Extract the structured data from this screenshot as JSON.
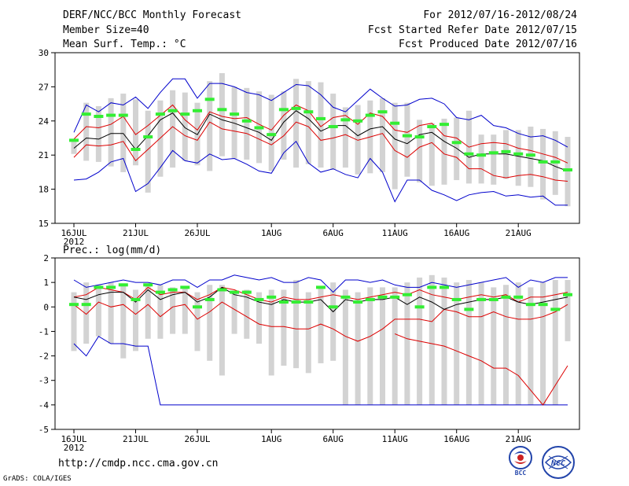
{
  "header": {
    "title": "DERF/NCC/BCC Monthly Forecast",
    "members": "Member Size=40",
    "variable": "Mean Surf. Temp.: °C",
    "period": "For 2012/07/16-2012/08/24",
    "started": "Fcst Started Refer Date 2012/07/15",
    "produced": "Fcst Produced Date 2012/07/16"
  },
  "footer": {
    "url": "http://cmdp.ncc.cma.gov.cn",
    "grads": "GrADS: COLA/IGES",
    "logo1_label": "BCC",
    "logo2_label": "NCC"
  },
  "colors": {
    "box": "#d3d3d3",
    "green": "#33ee33",
    "blue": "#0000cc",
    "red": "#dd0000",
    "mean": "#000000"
  },
  "chart_data": [
    {
      "type": "line",
      "title": "Mean Surf. Temp.: °C",
      "ylabel": "°C",
      "ylim": [
        15,
        30
      ],
      "yticks": [
        15,
        18,
        21,
        24,
        27,
        30
      ],
      "xlim": [
        0,
        40
      ],
      "xticks": [
        {
          "day": 0,
          "label": "16JUL",
          "sub": "2012"
        },
        {
          "day": 5,
          "label": "21JUL"
        },
        {
          "day": 10,
          "label": "26JUL"
        },
        {
          "day": 16,
          "label": "1AUG"
        },
        {
          "day": 21,
          "label": "6AUG"
        },
        {
          "day": 26,
          "label": "11AUG"
        },
        {
          "day": 31,
          "label": "16AUG"
        },
        {
          "day": 36,
          "label": "21AUG"
        }
      ],
      "series": [
        {
          "name": "box_top",
          "values": [
            22.4,
            25.6,
            25.3,
            26.0,
            26.4,
            25.9,
            24.9,
            25.8,
            26.7,
            26.5,
            25.6,
            27.5,
            28.2,
            27.0,
            26.9,
            26.6,
            26.3,
            26.6,
            27.7,
            27.5,
            27.4,
            26.4,
            25.2,
            25.4,
            25.8,
            26.0,
            25.6,
            25.6,
            24.1,
            23.8,
            24.2,
            24.3,
            24.9,
            22.8,
            22.8,
            23.2,
            23.2,
            23.5,
            23.3,
            23.1,
            22.6
          ]
        },
        {
          "name": "box_bottom",
          "values": [
            21.1,
            20.5,
            20.4,
            20.0,
            19.5,
            20.1,
            17.7,
            19.1,
            19.9,
            20.5,
            20.1,
            19.6,
            20.9,
            20.7,
            20.6,
            20.3,
            19.6,
            20.6,
            19.9,
            20.2,
            19.9,
            19.7,
            19.9,
            19.3,
            19.4,
            19.5,
            18.0,
            19.1,
            18.6,
            18.3,
            18.4,
            18.8,
            18.5,
            18.5,
            18.4,
            18.9,
            18.3,
            18.2,
            17.1,
            17.5,
            16.5
          ]
        },
        {
          "name": "max",
          "values": [
            23.0,
            25.4,
            24.8,
            25.6,
            25.4,
            26.1,
            25.1,
            26.5,
            27.7,
            27.7,
            26.0,
            27.3,
            27.3,
            27.0,
            26.5,
            26.3,
            25.8,
            26.5,
            27.2,
            27.1,
            26.3,
            25.2,
            24.8,
            25.8,
            26.8,
            26.0,
            25.3,
            25.4,
            25.9,
            26.0,
            25.5,
            24.3,
            24.1,
            24.5,
            23.6,
            23.4,
            22.9,
            22.6,
            22.7,
            22.3,
            21.7
          ]
        },
        {
          "name": "p90",
          "values": [
            22.4,
            23.5,
            23.4,
            23.7,
            24.4,
            22.8,
            23.6,
            24.5,
            25.4,
            24.1,
            23.2,
            24.8,
            24.4,
            24.2,
            24.3,
            23.7,
            23.2,
            24.5,
            25.4,
            24.9,
            23.5,
            24.3,
            24.5,
            23.7,
            24.7,
            24.4,
            23.2,
            23.0,
            23.6,
            23.8,
            22.7,
            22.5,
            21.7,
            22.0,
            22.1,
            22.0,
            21.6,
            21.4,
            21.1,
            20.8,
            20.3
          ]
        },
        {
          "name": "mean",
          "values": [
            21.6,
            22.5,
            22.4,
            22.9,
            22.9,
            21.5,
            22.7,
            24.1,
            24.7,
            23.4,
            22.8,
            24.6,
            24.1,
            23.8,
            23.4,
            23.0,
            22.3,
            23.9,
            24.9,
            24.2,
            23.1,
            23.6,
            23.6,
            22.7,
            23.3,
            23.5,
            22.4,
            22.0,
            22.8,
            23.0,
            22.2,
            21.6,
            20.8,
            21.1,
            21.1,
            21.1,
            20.9,
            20.7,
            20.5,
            20.0,
            19.6
          ]
        },
        {
          "name": "p10",
          "values": [
            20.8,
            21.9,
            21.8,
            21.9,
            22.2,
            20.5,
            21.5,
            22.5,
            23.5,
            22.7,
            22.3,
            23.9,
            23.3,
            23.1,
            22.9,
            22.4,
            21.9,
            22.7,
            23.9,
            23.5,
            22.3,
            22.5,
            22.8,
            22.3,
            22.6,
            22.9,
            21.4,
            20.8,
            21.7,
            22.1,
            21.1,
            20.8,
            19.8,
            19.8,
            19.2,
            19.0,
            19.2,
            19.3,
            19.1,
            18.8,
            18.7
          ]
        },
        {
          "name": "min",
          "values": [
            18.8,
            18.9,
            19.5,
            20.4,
            20.7,
            17.8,
            18.5,
            19.9,
            21.4,
            20.5,
            20.3,
            21.1,
            20.6,
            20.7,
            20.2,
            19.6,
            19.4,
            21.2,
            22.2,
            20.3,
            19.5,
            19.8,
            19.3,
            19.0,
            20.7,
            19.5,
            16.9,
            18.8,
            18.8,
            17.9,
            17.5,
            17.0,
            17.5,
            17.7,
            17.8,
            17.4,
            17.5,
            17.3,
            17.4,
            16.6,
            16.6
          ]
        },
        {
          "name": "obs_green",
          "values": [
            22.3,
            24.6,
            24.4,
            24.5,
            24.5,
            21.5,
            22.6,
            24.6,
            24.9,
            24.6,
            24.9,
            25.9,
            25.0,
            24.6,
            24.0,
            23.4,
            22.8,
            25.0,
            25.1,
            24.8,
            24.2,
            23.5,
            24.1,
            24.0,
            24.5,
            24.8,
            23.8,
            22.7,
            22.6,
            23.5,
            23.7,
            22.1,
            21.1,
            21.0,
            21.2,
            21.3,
            21.1,
            21.0,
            20.4,
            20.4,
            19.7
          ]
        }
      ]
    },
    {
      "type": "line",
      "title": "Prec.: log(mm/d)",
      "ylabel": "log(mm/d)",
      "ylim": [
        -5,
        2
      ],
      "yticks": [
        -5,
        -4,
        -3,
        -2,
        -1,
        0,
        1,
        2
      ],
      "xlim": [
        0,
        40
      ],
      "xticks": [
        {
          "day": 0,
          "label": "16JUL",
          "sub": "2012"
        },
        {
          "day": 5,
          "label": "21JUL"
        },
        {
          "day": 10,
          "label": "26JUL"
        },
        {
          "day": 16,
          "label": "1AUG"
        },
        {
          "day": 21,
          "label": "6AUG"
        },
        {
          "day": 26,
          "label": "11AUG"
        },
        {
          "day": 31,
          "label": "16AUG"
        },
        {
          "day": 36,
          "label": "21AUG"
        }
      ],
      "series": [
        {
          "name": "box_top",
          "values": [
            0.6,
            1.0,
            0.9,
            1.0,
            0.9,
            0.7,
            0.9,
            0.9,
            0.8,
            0.8,
            0.6,
            0.9,
            0.9,
            0.6,
            0.7,
            0.6,
            0.7,
            0.7,
            1.1,
            0.6,
            0.8,
            1.0,
            0.7,
            0.6,
            0.8,
            0.8,
            0.8,
            1.0,
            1.2,
            1.3,
            1.2,
            1.0,
            1.1,
            1.0,
            0.8,
            0.9,
            1.0,
            0.8,
            1.0,
            1.1,
            1.1
          ]
        },
        {
          "name": "box_bottom",
          "values": [
            -1.8,
            -1.5,
            -1.2,
            -1.5,
            -2.1,
            -1.8,
            -1.3,
            -1.3,
            -1.1,
            -1.1,
            -1.8,
            -2.2,
            -2.8,
            -1.1,
            -1.3,
            -1.5,
            -2.8,
            -2.4,
            -2.5,
            -2.7,
            -2.3,
            -2.2,
            -4.0,
            -4.0,
            -4.0,
            -4.0,
            -4.0,
            -4.0,
            -4.0,
            -4.0,
            -4.0,
            -4.0,
            -4.0,
            -4.0,
            -4.0,
            -4.0,
            -4.0,
            -4.0,
            -4.0,
            -4.0,
            -1.4
          ]
        },
        {
          "name": "max",
          "values": [
            1.1,
            0.8,
            0.9,
            1.0,
            1.1,
            1.0,
            1.0,
            0.9,
            1.1,
            1.1,
            0.8,
            1.1,
            1.1,
            1.3,
            1.2,
            1.1,
            1.2,
            1.0,
            1.0,
            1.2,
            1.1,
            0.6,
            1.1,
            1.1,
            1.0,
            1.1,
            0.9,
            0.8,
            0.8,
            1.0,
            0.9,
            0.8,
            0.9,
            1.0,
            1.1,
            1.2,
            0.8,
            1.1,
            1.0,
            1.2,
            1.2
          ]
        },
        {
          "name": "p90",
          "values": [
            0.4,
            0.5,
            0.8,
            0.7,
            0.6,
            0.3,
            0.8,
            0.5,
            0.6,
            0.6,
            0.3,
            0.5,
            0.8,
            0.7,
            0.5,
            0.3,
            0.2,
            0.4,
            0.3,
            0.3,
            0.4,
            0.5,
            0.4,
            0.3,
            0.4,
            0.5,
            0.6,
            0.5,
            0.7,
            0.5,
            0.4,
            0.3,
            0.4,
            0.5,
            0.4,
            0.5,
            0.2,
            0.4,
            0.4,
            0.5,
            0.6
          ]
        },
        {
          "name": "mean",
          "values": [
            0.4,
            0.3,
            0.5,
            0.6,
            0.6,
            0.2,
            0.7,
            0.3,
            0.5,
            0.6,
            0.2,
            0.4,
            0.8,
            0.5,
            0.4,
            0.2,
            0.1,
            0.3,
            0.2,
            0.2,
            0.3,
            -0.2,
            0.3,
            0.2,
            0.3,
            0.3,
            0.4,
            0.1,
            0.4,
            0.2,
            -0.1,
            0.1,
            0.2,
            0.3,
            0.3,
            0.4,
            0.2,
            0.1,
            0.2,
            0.3,
            0.4
          ]
        },
        {
          "name": "p10",
          "values": [
            0.1,
            -0.3,
            0.2,
            0.0,
            0.1,
            -0.3,
            0.1,
            -0.4,
            0.0,
            0.1,
            -0.5,
            -0.2,
            0.2,
            -0.1,
            -0.4,
            -0.7,
            -0.8,
            -0.8,
            -0.9,
            -0.9,
            -0.7,
            -0.9,
            -1.2,
            -1.4,
            -1.2,
            -0.9,
            -0.5,
            -0.5,
            -0.5,
            -0.6,
            -0.1,
            -0.2,
            -0.4,
            -0.4,
            -0.2,
            -0.4,
            -0.5,
            -0.5,
            -0.4,
            -0.2,
            0.1
          ]
        },
        {
          "name": "min",
          "values": [
            -1.5,
            -2.0,
            -1.2,
            -1.5,
            -1.5,
            -1.6,
            -1.6,
            -4.0,
            -4.0,
            -4.0,
            -4.0,
            -4.0,
            -4.0,
            -4.0,
            -4.0,
            -4.0,
            -4.0,
            -4.0,
            -4.0,
            -4.0,
            -4.0,
            -4.0,
            -4.0,
            -4.0,
            -4.0,
            -4.0,
            -4.0,
            -4.0,
            -4.0,
            -4.0,
            -4.0,
            -4.0,
            -4.0,
            -4.0,
            -4.0,
            -4.0,
            -4.0,
            -4.0,
            -4.0,
            -4.0,
            -4.0
          ]
        },
        {
          "name": "min_red",
          "values": [
            null,
            null,
            null,
            null,
            null,
            null,
            null,
            null,
            null,
            null,
            null,
            null,
            null,
            null,
            null,
            null,
            null,
            null,
            null,
            null,
            null,
            null,
            null,
            null,
            null,
            null,
            -1.1,
            -1.3,
            -1.4,
            -1.5,
            -1.6,
            -1.8,
            -2.0,
            -2.2,
            -2.5,
            -2.5,
            -2.8,
            -3.4,
            -4.0,
            -3.2,
            -2.4
          ]
        },
        {
          "name": "obs_green",
          "values": [
            0.1,
            0.1,
            0.8,
            0.8,
            0.9,
            0.3,
            0.9,
            0.6,
            0.7,
            0.8,
            0.0,
            0.3,
            0.7,
            0.6,
            0.6,
            0.3,
            0.4,
            0.2,
            0.2,
            0.2,
            0.8,
            0.0,
            0.4,
            0.2,
            0.3,
            0.4,
            0.4,
            0.5,
            0.0,
            0.8,
            0.8,
            0.3,
            -0.1,
            0.3,
            0.3,
            0.4,
            0.4,
            0.1,
            0.1,
            -0.1,
            0.5
          ]
        }
      ]
    }
  ]
}
